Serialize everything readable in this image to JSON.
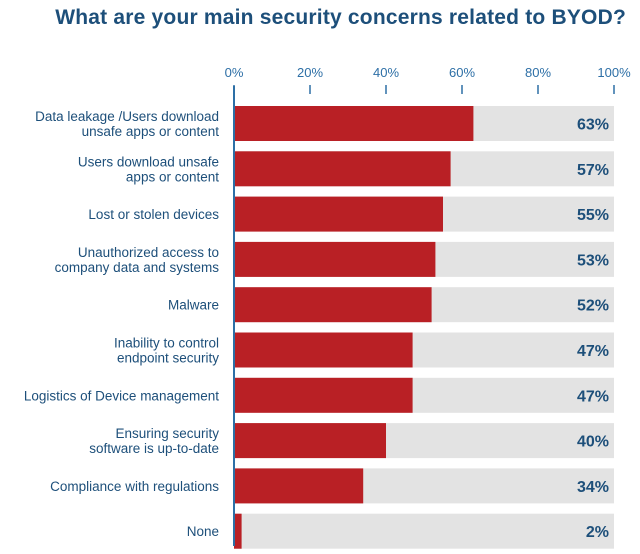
{
  "title": "What are your main security concerns related to BYOD?",
  "colors": {
    "bar": "#b92025",
    "track": "#e3e3e3",
    "text": "#1d4f7a",
    "axis": "#2d6fa6"
  },
  "chart_data": {
    "type": "bar",
    "orientation": "horizontal",
    "title": "What are your main security concerns related to BYOD?",
    "xlim": [
      0,
      100
    ],
    "ticks": [
      "0%",
      "20%",
      "40%",
      "60%",
      "80%",
      "100%"
    ],
    "tick_values": [
      0,
      20,
      40,
      60,
      80,
      100
    ],
    "categories": [
      [
        "Data leakage /Users download",
        "unsafe apps or content"
      ],
      [
        "Users download unsafe",
        "apps or content"
      ],
      [
        "Lost or stolen devices"
      ],
      [
        "Unauthorized access to",
        "company data and systems"
      ],
      [
        "Malware"
      ],
      [
        "Inability to control",
        "endpoint security"
      ],
      [
        "Logistics of Device management"
      ],
      [
        "Ensuring security",
        "software is up-to-date"
      ],
      [
        "Compliance with regulations"
      ],
      [
        "None"
      ]
    ],
    "values": [
      63,
      57,
      55,
      53,
      52,
      47,
      47,
      40,
      34,
      2
    ],
    "value_labels": [
      "63%",
      "57%",
      "55%",
      "53%",
      "52%",
      "47%",
      "47%",
      "40%",
      "34%",
      "2%"
    ],
    "grid": false,
    "legend": "none"
  }
}
